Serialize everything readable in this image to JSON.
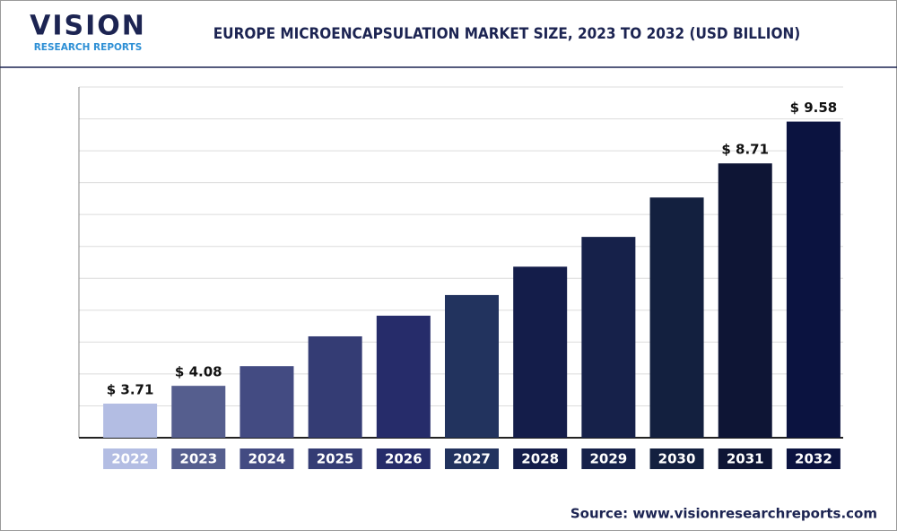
{
  "logo": {
    "name": "VISION",
    "tagline": "RESEARCH REPORTS"
  },
  "source": "Source: www.visionresearchreports.com",
  "chart_data": {
    "type": "bar",
    "title": "EUROPE MICROENCAPSULATION MARKET SIZE, 2023 TO 2032 (USD BILLION)",
    "categories": [
      "2022",
      "2023",
      "2024",
      "2025",
      "2026",
      "2027",
      "2028",
      "2029",
      "2030",
      "2031",
      "2032"
    ],
    "values": [
      3.71,
      4.08,
      4.49,
      5.11,
      5.54,
      5.97,
      6.56,
      7.18,
      8.0,
      8.71,
      9.58
    ],
    "value_labels": [
      "$ 3.71",
      "$ 4.08",
      null,
      null,
      null,
      null,
      null,
      null,
      null,
      "$ 8.71",
      "$ 9.58"
    ],
    "colors": [
      "#b3bde3",
      "#555e8e",
      "#434b82",
      "#343c74",
      "#262c6a",
      "#22335e",
      "#141d4a",
      "#16214a",
      "#13203f",
      "#0e1535",
      "#0b1340"
    ],
    "ylim": [
      3,
      10.3
    ],
    "grid": true
  }
}
